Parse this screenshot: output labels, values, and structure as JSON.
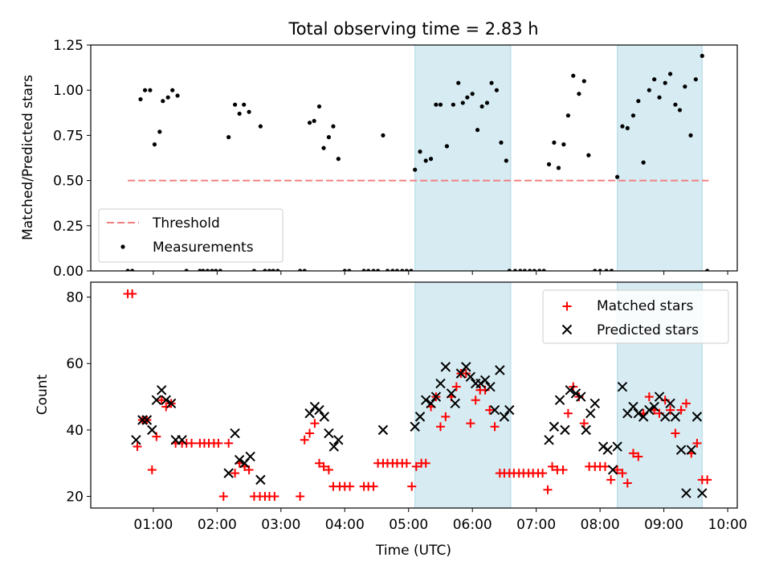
{
  "chart_data": {
    "title": "Total observing time = 2.83 h",
    "xlabel": "Time (UTC)",
    "x_tick_labels": [
      "01:00",
      "02:00",
      "03:00",
      "04:00",
      "05:00",
      "06:00",
      "07:00",
      "08:00",
      "09:00",
      "10:00"
    ],
    "x_tick_hours": [
      1,
      2,
      3,
      4,
      5,
      6,
      7,
      8,
      9,
      10
    ],
    "xlim_hours": [
      0.02,
      10.15
    ],
    "shaded_intervals_hours": [
      [
        5.1,
        6.6
      ],
      [
        8.27,
        9.6
      ]
    ],
    "shade_color": "#add8e6",
    "panels": [
      {
        "type": "scatter",
        "ylabel": "Matched/Predicted stars",
        "ylim": [
          0,
          1.25
        ],
        "y_ticks": [
          "0.00",
          "0.25",
          "0.50",
          "0.75",
          "1.00",
          "1.25"
        ],
        "y_tick_values": [
          0,
          0.25,
          0.5,
          0.75,
          1.0,
          1.25
        ],
        "legend": {
          "placement": "lower-left",
          "entries": [
            {
              "label": "Threshold",
              "style": "dashed-line",
              "color": "#f08080"
            },
            {
              "label": "Measurements",
              "style": "dot",
              "color": "#000000"
            }
          ]
        },
        "threshold": {
          "name": "Threshold",
          "value": 0.5,
          "x_range": [
            0.6,
            9.7
          ],
          "color": "#f08080"
        },
        "measurements": {
          "name": "Measurements",
          "color": "#000000",
          "x": [
            0.6,
            0.67,
            0.8,
            0.87,
            0.95,
            1.02,
            1.1,
            1.15,
            1.23,
            1.3,
            1.38,
            1.52,
            1.73,
            1.78,
            1.85,
            1.92,
            1.98,
            2.05,
            2.18,
            2.28,
            2.35,
            2.42,
            2.5,
            2.58,
            2.68,
            2.75,
            2.82,
            2.88,
            2.95,
            3.3,
            3.37,
            3.45,
            3.52,
            3.6,
            3.67,
            3.75,
            3.82,
            3.9,
            4.0,
            4.07,
            4.3,
            4.37,
            4.45,
            4.52,
            4.6,
            4.67,
            4.75,
            4.82,
            4.9,
            4.97,
            5.04,
            5.1,
            5.18,
            5.27,
            5.35,
            5.43,
            5.5,
            5.6,
            5.7,
            5.78,
            5.85,
            5.92,
            6.0,
            6.08,
            6.15,
            6.23,
            6.3,
            6.38,
            6.45,
            6.53,
            6.58,
            6.67,
            6.75,
            6.82,
            6.9,
            6.97,
            7.05,
            7.12,
            7.2,
            7.28,
            7.35,
            7.43,
            7.5,
            7.58,
            7.67,
            7.75,
            7.82,
            7.92,
            8.0,
            8.1,
            8.18,
            8.27,
            8.35,
            8.43,
            8.52,
            8.6,
            8.68,
            8.77,
            8.85,
            8.93,
            9.02,
            9.1,
            9.18,
            9.25,
            9.33,
            9.42,
            9.5,
            9.6,
            9.68
          ],
          "y": [
            0,
            0,
            0.95,
            1.0,
            1.0,
            0.7,
            0.77,
            0.94,
            0.96,
            1.0,
            0.97,
            0,
            0,
            0,
            0,
            0,
            0,
            0,
            0.74,
            0.92,
            0.87,
            0.92,
            0.88,
            0,
            0.8,
            0,
            0,
            0,
            0,
            0,
            0,
            0.82,
            0.83,
            0.91,
            0.68,
            0.74,
            0.8,
            0.62,
            0,
            0,
            0,
            0,
            0,
            0,
            0.75,
            0,
            0,
            0,
            0,
            0,
            0,
            0.56,
            0.66,
            0.61,
            0.62,
            0.92,
            0.92,
            0.69,
            0.92,
            1.04,
            0.93,
            0.96,
            0.98,
            0.78,
            0.91,
            0.93,
            1.04,
            1.0,
            0.71,
            0.61,
            0,
            0,
            0,
            0,
            0,
            0,
            0,
            0,
            0.59,
            0.71,
            0.57,
            0.7,
            0.86,
            1.08,
            0.98,
            1.05,
            0.64,
            0,
            0,
            0,
            0,
            0.52,
            0.8,
            0.79,
            0.86,
            0.94,
            0.6,
            1.0,
            1.06,
            0.96,
            1.04,
            1.09,
            0.92,
            0.89,
            1.02,
            0.75,
            1.06,
            1.19,
            0
          ]
        }
      },
      {
        "type": "scatter",
        "ylabel": "Count",
        "ylim": [
          16.5,
          84.5
        ],
        "y_ticks": [
          "20",
          "40",
          "60",
          "80"
        ],
        "y_tick_values": [
          20,
          40,
          60,
          80
        ],
        "legend": {
          "placement": "top-right",
          "entries": [
            {
              "label": "Matched stars",
              "style": "plus",
              "color": "#ff0000"
            },
            {
              "label": "Predicted stars",
              "style": "x",
              "color": "#000000"
            }
          ]
        },
        "series": [
          {
            "name": "Matched stars",
            "marker": "plus",
            "color": "#ff0000",
            "x": [
              0.6,
              0.67,
              0.75,
              0.83,
              0.9,
              0.98,
              1.05,
              1.13,
              1.2,
              1.28,
              1.35,
              1.45,
              1.52,
              1.6,
              1.73,
              1.8,
              1.87,
              1.95,
              2.02,
              2.1,
              2.18,
              2.28,
              2.35,
              2.43,
              2.5,
              2.58,
              2.67,
              2.75,
              2.82,
              2.9,
              3.3,
              3.37,
              3.45,
              3.53,
              3.6,
              3.67,
              3.75,
              3.82,
              3.92,
              4.0,
              4.08,
              4.3,
              4.37,
              4.45,
              4.52,
              4.6,
              4.67,
              4.75,
              4.82,
              4.9,
              4.97,
              5.05,
              5.12,
              5.2,
              5.27,
              5.35,
              5.43,
              5.5,
              5.58,
              5.67,
              5.75,
              5.82,
              5.9,
              5.97,
              6.05,
              6.12,
              6.2,
              6.27,
              6.35,
              6.43,
              6.5,
              6.58,
              6.65,
              6.73,
              6.8,
              6.88,
              6.95,
              7.03,
              7.1,
              7.18,
              7.25,
              7.33,
              7.42,
              7.5,
              7.58,
              7.67,
              7.75,
              7.83,
              7.92,
              8.0,
              8.08,
              8.17,
              8.27,
              8.35,
              8.43,
              8.52,
              8.6,
              8.68,
              8.77,
              8.85,
              8.93,
              9.02,
              9.1,
              9.18,
              9.27,
              9.35,
              9.43,
              9.52,
              9.6,
              9.68
            ],
            "y": [
              81,
              81,
              35,
              43,
              43,
              28,
              38,
              49,
              47,
              48,
              36,
              36,
              36,
              36,
              36,
              36,
              36,
              36,
              36,
              20,
              36,
              27,
              30,
              29,
              28,
              20,
              20,
              20,
              20,
              20,
              20,
              37,
              39,
              42,
              30,
              29,
              28,
              23,
              23,
              23,
              23,
              23,
              23,
              23,
              30,
              30,
              30,
              30,
              30,
              30,
              30,
              23,
              29,
              30,
              30,
              47,
              50,
              41,
              44,
              50,
              53,
              57,
              57,
              42,
              49,
              52,
              52,
              46,
              41,
              27,
              27,
              27,
              27,
              27,
              27,
              27,
              27,
              27,
              27,
              22,
              29,
              28,
              28,
              45,
              53,
              50,
              42,
              29,
              29,
              29,
              29,
              25,
              28,
              27,
              24,
              33,
              32,
              45,
              50,
              46,
              45,
              49,
              46,
              39,
              46,
              48,
              33,
              36,
              25,
              25
            ]
          },
          {
            "name": "Predicted stars",
            "marker": "x",
            "color": "#000000",
            "x": [
              0.73,
              0.83,
              0.9,
              0.98,
              1.05,
              1.13,
              1.2,
              1.28,
              1.35,
              1.45,
              2.18,
              2.28,
              2.35,
              2.43,
              2.52,
              2.68,
              3.45,
              3.53,
              3.6,
              3.68,
              3.75,
              3.83,
              3.9,
              4.6,
              5.1,
              5.18,
              5.27,
              5.35,
              5.43,
              5.5,
              5.58,
              5.67,
              5.73,
              5.82,
              5.9,
              5.97,
              6.05,
              6.13,
              6.2,
              6.28,
              6.35,
              6.43,
              6.5,
              6.58,
              7.2,
              7.28,
              7.37,
              7.45,
              7.53,
              7.62,
              7.7,
              7.78,
              7.85,
              7.92,
              8.05,
              8.12,
              8.2,
              8.27,
              8.35,
              8.43,
              8.52,
              8.6,
              8.68,
              8.77,
              8.85,
              8.93,
              9.02,
              9.1,
              9.18,
              9.27,
              9.35,
              9.43,
              9.52,
              9.6
            ],
            "y": [
              37,
              43,
              43,
              40,
              49,
              52,
              49,
              48,
              37,
              37,
              27,
              39,
              31,
              30,
              32,
              25,
              45,
              47,
              46,
              44,
              39,
              35,
              37,
              40,
              41,
              44,
              49,
              48,
              50,
              54,
              59,
              51,
              48,
              57,
              59,
              56,
              54,
              54,
              55,
              53,
              46,
              58,
              44,
              46,
              37,
              41,
              49,
              40,
              52,
              51,
              50,
              40,
              45,
              48,
              35,
              34,
              28,
              35,
              53,
              45,
              47,
              45,
              44,
              46,
              47,
              50,
              44,
              48,
              44,
              34,
              21,
              34,
              44,
              21
            ]
          }
        ]
      }
    ]
  }
}
